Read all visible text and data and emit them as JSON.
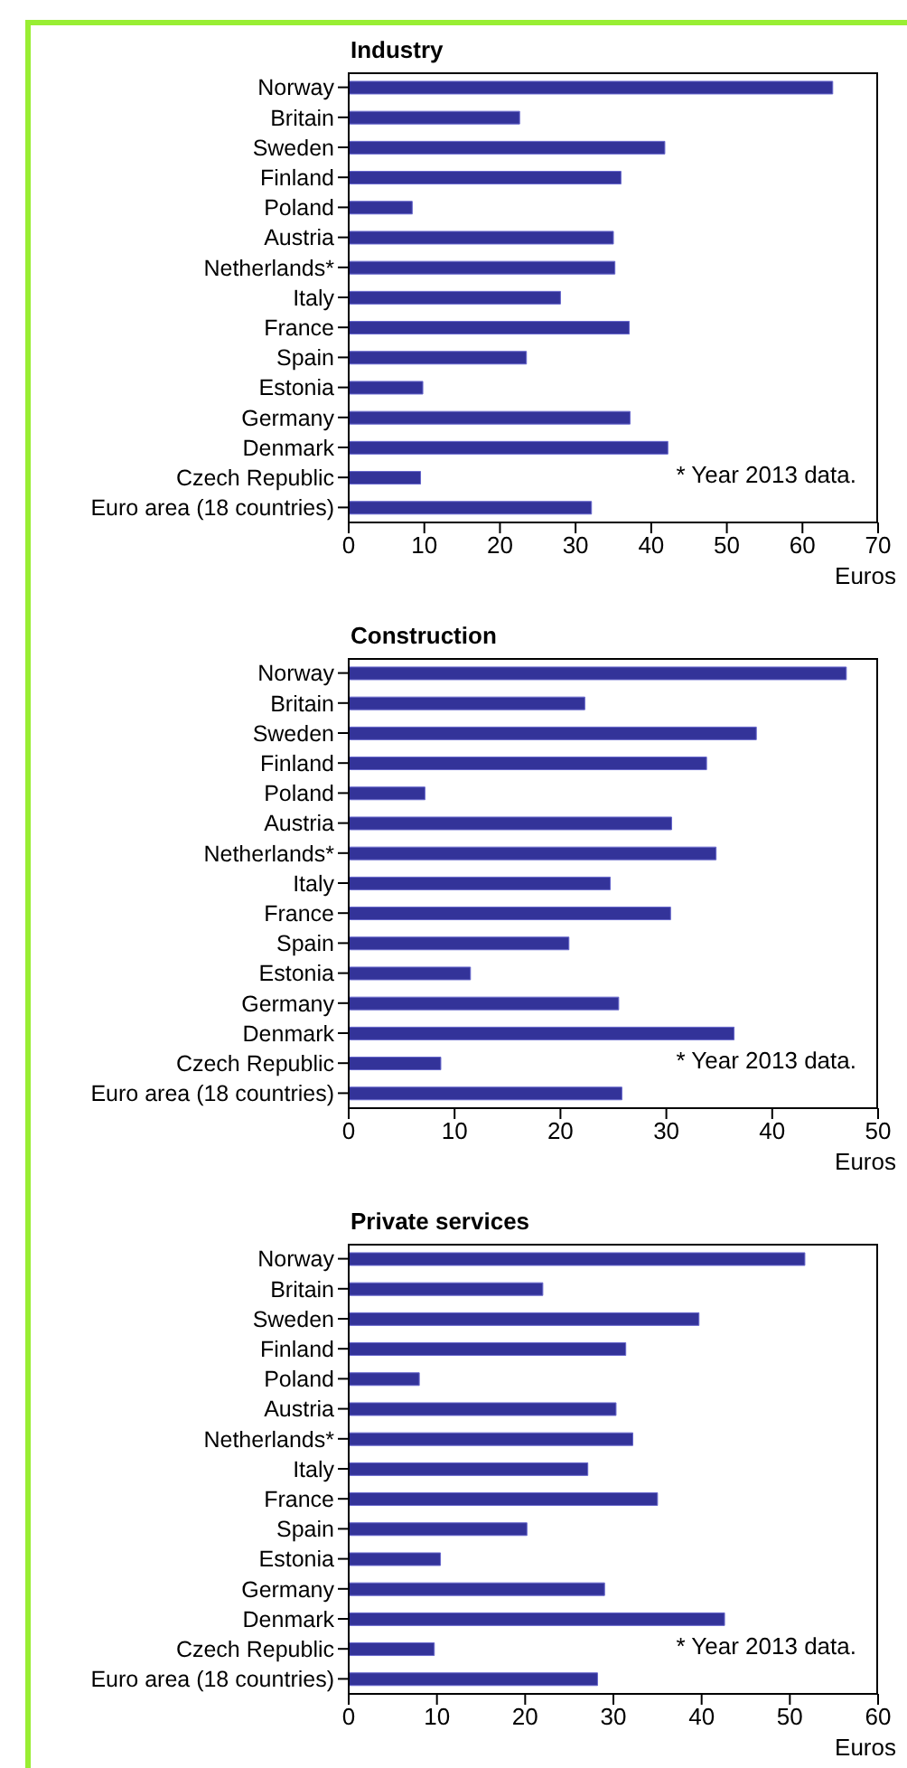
{
  "chart_data": [
    {
      "type": "bar",
      "title": "Industry",
      "orientation": "horizontal",
      "xlabel": "Euros",
      "color": "#333399",
      "categories": [
        "Norway",
        "Britain",
        "Sweden",
        "Finland",
        "Poland",
        "Austria",
        "Netherlands*",
        "Italy",
        "France",
        "Spain",
        "Estonia",
        "Germany",
        "Denmark",
        "Czech Republic",
        "Euro area (18 countries)"
      ],
      "values": [
        64.0,
        22.6,
        41.8,
        36.0,
        8.4,
        35.0,
        35.2,
        28.0,
        37.1,
        23.5,
        9.8,
        37.2,
        42.2,
        9.5,
        32.1
      ],
      "xlim": [
        0,
        70
      ],
      "xticks": [
        0,
        10,
        20,
        30,
        40,
        50,
        60,
        70
      ],
      "annotations": [
        "* Year 2013 data."
      ]
    },
    {
      "type": "bar",
      "title": "Construction",
      "orientation": "horizontal",
      "xlabel": "Euros",
      "color": "#333399",
      "categories": [
        "Norway",
        "Britain",
        "Sweden",
        "Finland",
        "Poland",
        "Austria",
        "Netherlands*",
        "Italy",
        "France",
        "Spain",
        "Estonia",
        "Germany",
        "Denmark",
        "Czech Republic",
        "Euro area (18 countries)"
      ],
      "values": [
        47.0,
        22.3,
        38.5,
        33.8,
        7.2,
        30.5,
        34.7,
        24.7,
        30.4,
        20.8,
        11.5,
        25.5,
        36.4,
        8.7,
        25.8
      ],
      "xlim": [
        0,
        50
      ],
      "xticks": [
        0,
        10,
        20,
        30,
        40,
        50
      ],
      "annotations": [
        "* Year 2013 data."
      ]
    },
    {
      "type": "bar",
      "title": "Private services",
      "orientation": "horizontal",
      "xlabel": "Euros",
      "color": "#333399",
      "categories": [
        "Norway",
        "Britain",
        "Sweden",
        "Finland",
        "Poland",
        "Austria",
        "Netherlands*",
        "Italy",
        "France",
        "Spain",
        "Estonia",
        "Germany",
        "Denmark",
        "Czech Republic",
        "Euro area (18 countries)"
      ],
      "values": [
        51.7,
        22.0,
        39.7,
        31.4,
        8.0,
        30.3,
        32.2,
        27.1,
        35.0,
        20.2,
        10.4,
        29.0,
        42.6,
        9.7,
        28.2
      ],
      "xlim": [
        0,
        60
      ],
      "xticks": [
        0,
        10,
        20,
        30,
        40,
        50,
        60
      ],
      "annotations": [
        "* Year 2013 data."
      ]
    }
  ]
}
